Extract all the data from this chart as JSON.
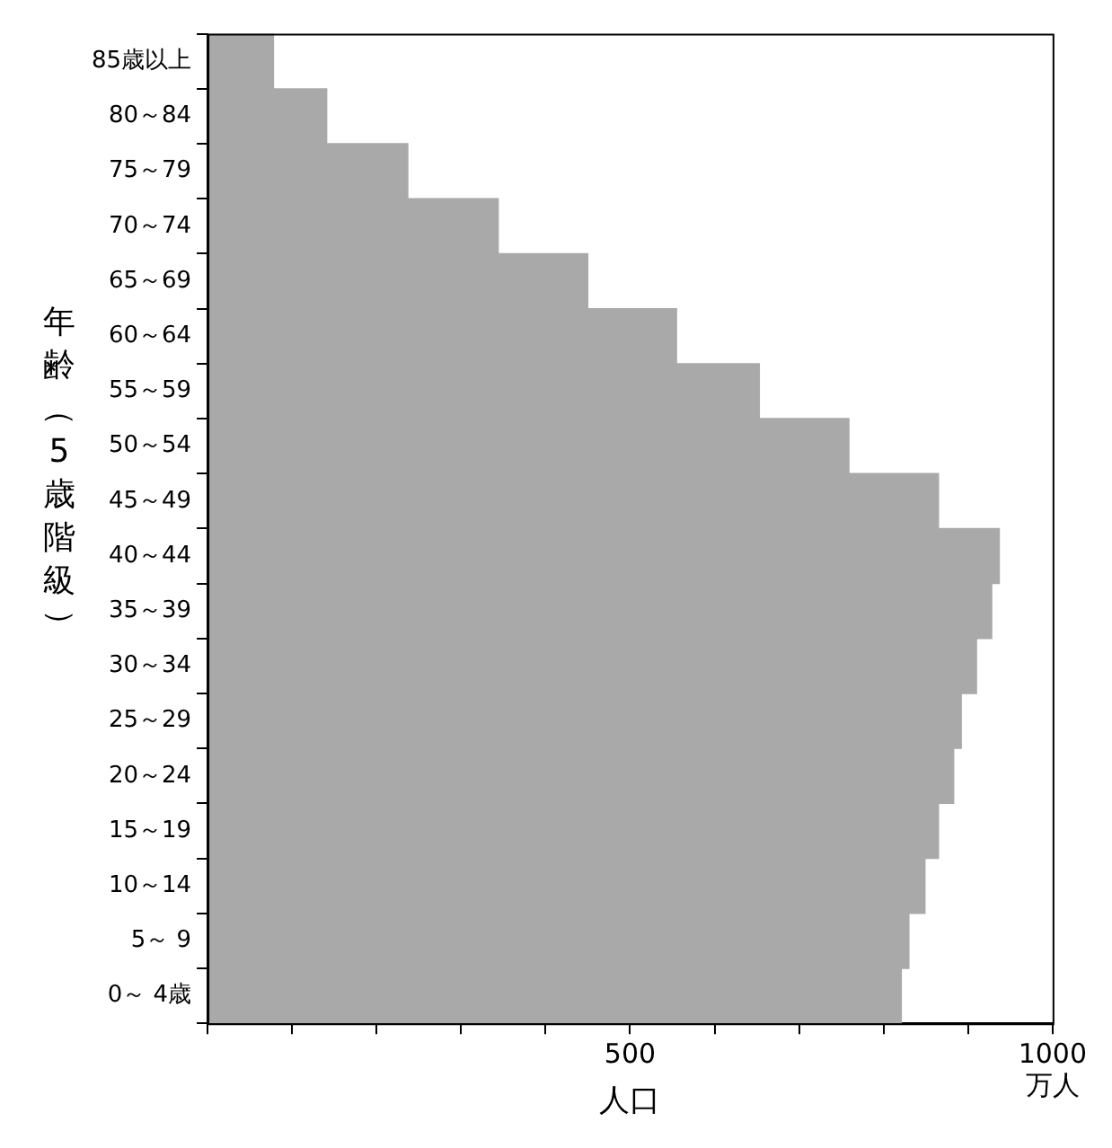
{
  "chart_data": {
    "type": "bar",
    "orientation": "horizontal",
    "ylabel": "年齢（5歳階級）",
    "xlabel": "人口",
    "annotations": [
      "万人"
    ],
    "categories": [
      "85歳以上",
      "80～84",
      "75～79",
      "70～74",
      "65～69",
      "60～64",
      "55～59",
      "50～54",
      "45～49",
      "40～44",
      "35～39",
      "30～34",
      "25～29",
      "20～24",
      "15～19",
      "10～14",
      "5～ 9",
      "0～ 4歳"
    ],
    "values": [
      78,
      141,
      237,
      344,
      450,
      555,
      653,
      759,
      865,
      937,
      928,
      910,
      892,
      883,
      865,
      849,
      830,
      821
    ],
    "color": "#a9a9a9",
    "xlim": [
      0,
      1000
    ],
    "xticks": [
      {
        "value": 0,
        "label": null
      },
      {
        "value": 100,
        "label": null
      },
      {
        "value": 200,
        "label": null
      },
      {
        "value": 300,
        "label": null
      },
      {
        "value": 400,
        "label": null
      },
      500,
      {
        "value": 600,
        "label": null
      },
      {
        "value": 700,
        "label": null
      },
      {
        "value": 800,
        "label": null
      },
      {
        "value": 900,
        "label": null
      },
      1000
    ],
    "grid": false,
    "legend": false
  }
}
